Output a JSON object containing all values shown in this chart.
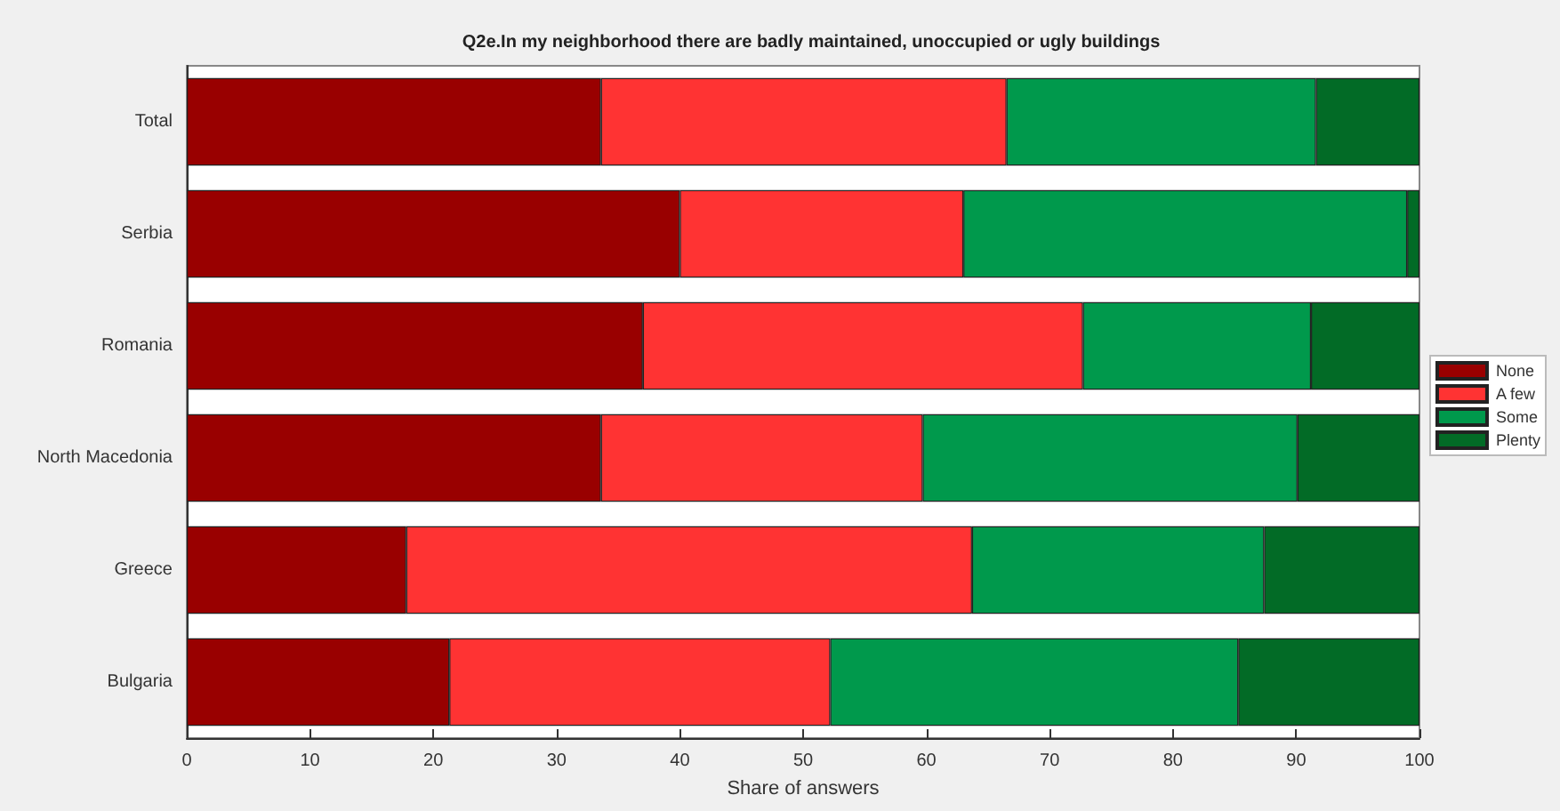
{
  "chart_data": {
    "type": "bar",
    "orientation": "horizontal",
    "stacked": true,
    "title": "Q2e.In my neighborhood there are badly maintained, unoccupied or ugly buildings",
    "xlabel": "Share of answers",
    "categories": [
      "Total",
      "Serbia",
      "Romania",
      "North Macedonia",
      "Greece",
      "Bulgaria"
    ],
    "series": [
      {
        "name": "None",
        "color": "#990000",
        "values": [
          33.6,
          40.0,
          37.0,
          33.6,
          17.8,
          21.3
        ]
      },
      {
        "name": "A few",
        "color": "#ff3333",
        "values": [
          32.9,
          23.0,
          35.7,
          26.1,
          45.9,
          30.9
        ]
      },
      {
        "name": "Some",
        "color": "#00994c",
        "values": [
          25.1,
          36.0,
          18.5,
          30.4,
          23.7,
          33.1
        ]
      },
      {
        "name": "Plenty",
        "color": "#026b26",
        "values": [
          8.4,
          1.0,
          8.8,
          9.9,
          12.6,
          14.7
        ]
      }
    ],
    "xlim": [
      0,
      100
    ],
    "xticks": [
      0,
      10,
      20,
      30,
      40,
      50,
      60,
      70,
      80,
      90,
      100
    ],
    "grid": false,
    "legend": "right"
  }
}
